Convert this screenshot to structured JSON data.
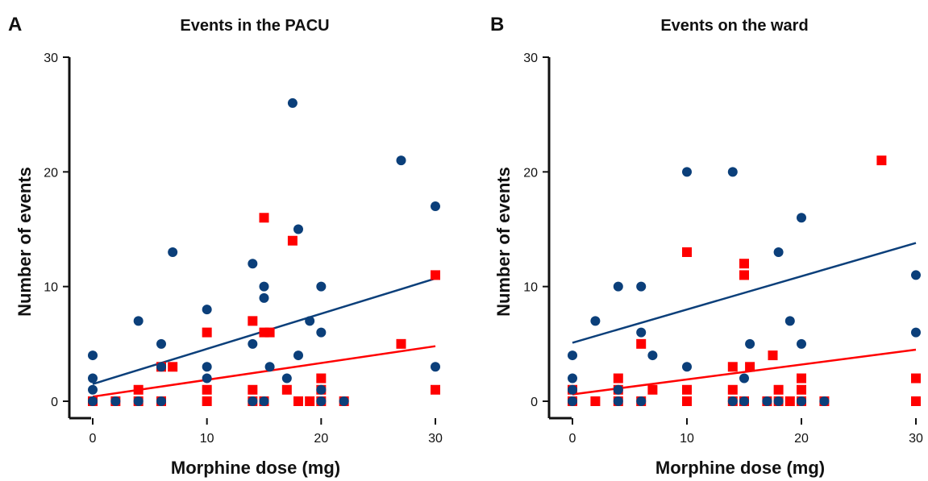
{
  "chart_data": [
    {
      "type": "scatter",
      "panel_label": "A",
      "title": "Events in the PACU",
      "xlabel": "Morphine dose (mg)",
      "ylabel": "Number of events",
      "xlim": [
        0,
        30
      ],
      "ylim": [
        0,
        30
      ],
      "xticks": [
        "0",
        "10",
        "20",
        "30"
      ],
      "yticks": [
        "0",
        "10",
        "20",
        "30"
      ],
      "series": [
        {
          "color": "#0b3f7a",
          "marker": "circle",
          "points": [
            [
              0,
              4
            ],
            [
              0,
              2
            ],
            [
              0,
              1
            ],
            [
              0,
              0
            ],
            [
              2,
              0
            ],
            [
              4,
              7
            ],
            [
              4,
              0
            ],
            [
              6,
              5
            ],
            [
              6,
              3
            ],
            [
              6,
              0
            ],
            [
              7,
              13
            ],
            [
              10,
              8
            ],
            [
              10,
              3
            ],
            [
              10,
              2
            ],
            [
              14,
              12
            ],
            [
              14,
              5
            ],
            [
              14,
              0
            ],
            [
              15,
              10
            ],
            [
              15,
              9
            ],
            [
              15,
              0
            ],
            [
              15.5,
              3
            ],
            [
              17,
              2
            ],
            [
              17.5,
              26
            ],
            [
              18,
              15
            ],
            [
              18,
              4
            ],
            [
              19,
              7
            ],
            [
              20,
              10
            ],
            [
              20,
              6
            ],
            [
              20,
              1
            ],
            [
              20,
              0
            ],
            [
              22,
              0
            ],
            [
              27,
              21
            ],
            [
              30,
              17
            ],
            [
              30,
              3
            ]
          ],
          "trend": [
            [
              0,
              1.5
            ],
            [
              30,
              10.7
            ]
          ]
        },
        {
          "color": "#ff0000",
          "marker": "square",
          "points": [
            [
              0,
              0
            ],
            [
              0,
              0
            ],
            [
              2,
              0
            ],
            [
              4,
              1
            ],
            [
              4,
              0
            ],
            [
              6,
              3
            ],
            [
              6,
              0
            ],
            [
              7,
              3
            ],
            [
              10,
              6
            ],
            [
              10,
              1
            ],
            [
              10,
              0
            ],
            [
              14,
              7
            ],
            [
              14,
              1
            ],
            [
              14,
              0
            ],
            [
              15,
              16
            ],
            [
              15,
              6
            ],
            [
              15,
              0
            ],
            [
              15.5,
              6
            ],
            [
              17,
              1
            ],
            [
              17.5,
              14
            ],
            [
              18,
              0
            ],
            [
              19,
              0
            ],
            [
              20,
              2
            ],
            [
              20,
              1
            ],
            [
              20,
              0
            ],
            [
              22,
              0
            ],
            [
              27,
              5
            ],
            [
              30,
              11
            ],
            [
              30,
              1
            ]
          ],
          "trend": [
            [
              0,
              0.4
            ],
            [
              30,
              4.8
            ]
          ]
        }
      ]
    },
    {
      "type": "scatter",
      "panel_label": "B",
      "title": "Events on the ward",
      "xlabel": "Morphine dose (mg)",
      "ylabel": "Number of events",
      "xlim": [
        0,
        30
      ],
      "ylim": [
        0,
        30
      ],
      "xticks": [
        "0",
        "10",
        "20",
        "30"
      ],
      "yticks": [
        "0",
        "10",
        "20",
        "30"
      ],
      "series": [
        {
          "color": "#0b3f7a",
          "marker": "circle",
          "points": [
            [
              0,
              4
            ],
            [
              0,
              2
            ],
            [
              0,
              1
            ],
            [
              0,
              0
            ],
            [
              2,
              7
            ],
            [
              4,
              10
            ],
            [
              4,
              1
            ],
            [
              4,
              0
            ],
            [
              6,
              10
            ],
            [
              6,
              6
            ],
            [
              6,
              0
            ],
            [
              7,
              4
            ],
            [
              10,
              20
            ],
            [
              10,
              3
            ],
            [
              14,
              20
            ],
            [
              14,
              0
            ],
            [
              15,
              2
            ],
            [
              15,
              0
            ],
            [
              15.5,
              5
            ],
            [
              17,
              0
            ],
            [
              18,
              13
            ],
            [
              18,
              0
            ],
            [
              19,
              7
            ],
            [
              20,
              16
            ],
            [
              20,
              5
            ],
            [
              20,
              0
            ],
            [
              22,
              0
            ],
            [
              30,
              11
            ],
            [
              30,
              6
            ]
          ],
          "trend": [
            [
              0,
              5.1
            ],
            [
              30,
              13.8
            ]
          ]
        },
        {
          "color": "#ff0000",
          "marker": "square",
          "points": [
            [
              0,
              1
            ],
            [
              0,
              0
            ],
            [
              2,
              0
            ],
            [
              4,
              2
            ],
            [
              4,
              1
            ],
            [
              4,
              0
            ],
            [
              6,
              5
            ],
            [
              6,
              0
            ],
            [
              7,
              1
            ],
            [
              10,
              13
            ],
            [
              10,
              1
            ],
            [
              10,
              0
            ],
            [
              14,
              3
            ],
            [
              14,
              1
            ],
            [
              14,
              0
            ],
            [
              15,
              12
            ],
            [
              15,
              11
            ],
            [
              15,
              0
            ],
            [
              15.5,
              3
            ],
            [
              17,
              0
            ],
            [
              17.5,
              4
            ],
            [
              18,
              1
            ],
            [
              18,
              0
            ],
            [
              19,
              0
            ],
            [
              20,
              2
            ],
            [
              20,
              1
            ],
            [
              20,
              0
            ],
            [
              22,
              0
            ],
            [
              27,
              21
            ],
            [
              30,
              2
            ],
            [
              30,
              0
            ]
          ],
          "trend": [
            [
              0,
              0.6
            ],
            [
              30,
              4.5
            ]
          ]
        }
      ]
    }
  ]
}
